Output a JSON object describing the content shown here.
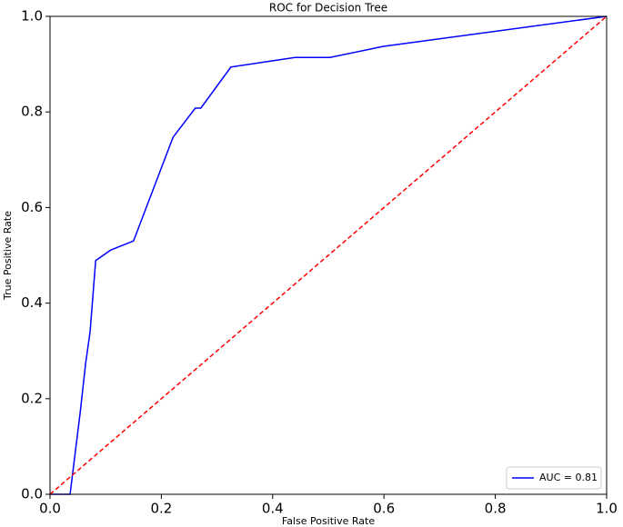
{
  "chart_data": {
    "type": "line",
    "title": "ROC for Decision Tree",
    "x_label": "False Positive Rate",
    "y_label": "True Positive Rate",
    "xlim": [
      0,
      1
    ],
    "ylim": [
      0,
      1
    ],
    "xticks": [
      {
        "value": 0,
        "label": "0.0"
      },
      0.2,
      0.4,
      0.6,
      0.8,
      {
        "value": 1,
        "label": "1.0"
      }
    ],
    "yticks": [
      {
        "value": 0,
        "label": "0.0"
      },
      0.2,
      0.4,
      0.6,
      0.8,
      {
        "value": 1,
        "label": "1.0"
      }
    ],
    "legend": "lower right",
    "series": [
      {
        "name": "AUC = 0.81",
        "color": "#0000ff",
        "dash": "solid",
        "x": [
          0,
          0.036,
          0.054,
          0.064,
          0.072,
          0.082,
          0.109,
          0.15,
          0.221,
          0.261,
          0.271,
          0.325,
          0.44,
          0.503,
          0.598,
          1
        ],
        "values": [
          0,
          0,
          0.169,
          0.274,
          0.34,
          0.489,
          0.511,
          0.53,
          0.747,
          0.808,
          0.808,
          0.894,
          0.914,
          0.914,
          0.937,
          1
        ]
      },
      {
        "color": "#ff0000",
        "dash": "dashed",
        "x": [
          0,
          1
        ],
        "values": [
          0,
          1
        ]
      }
    ]
  }
}
